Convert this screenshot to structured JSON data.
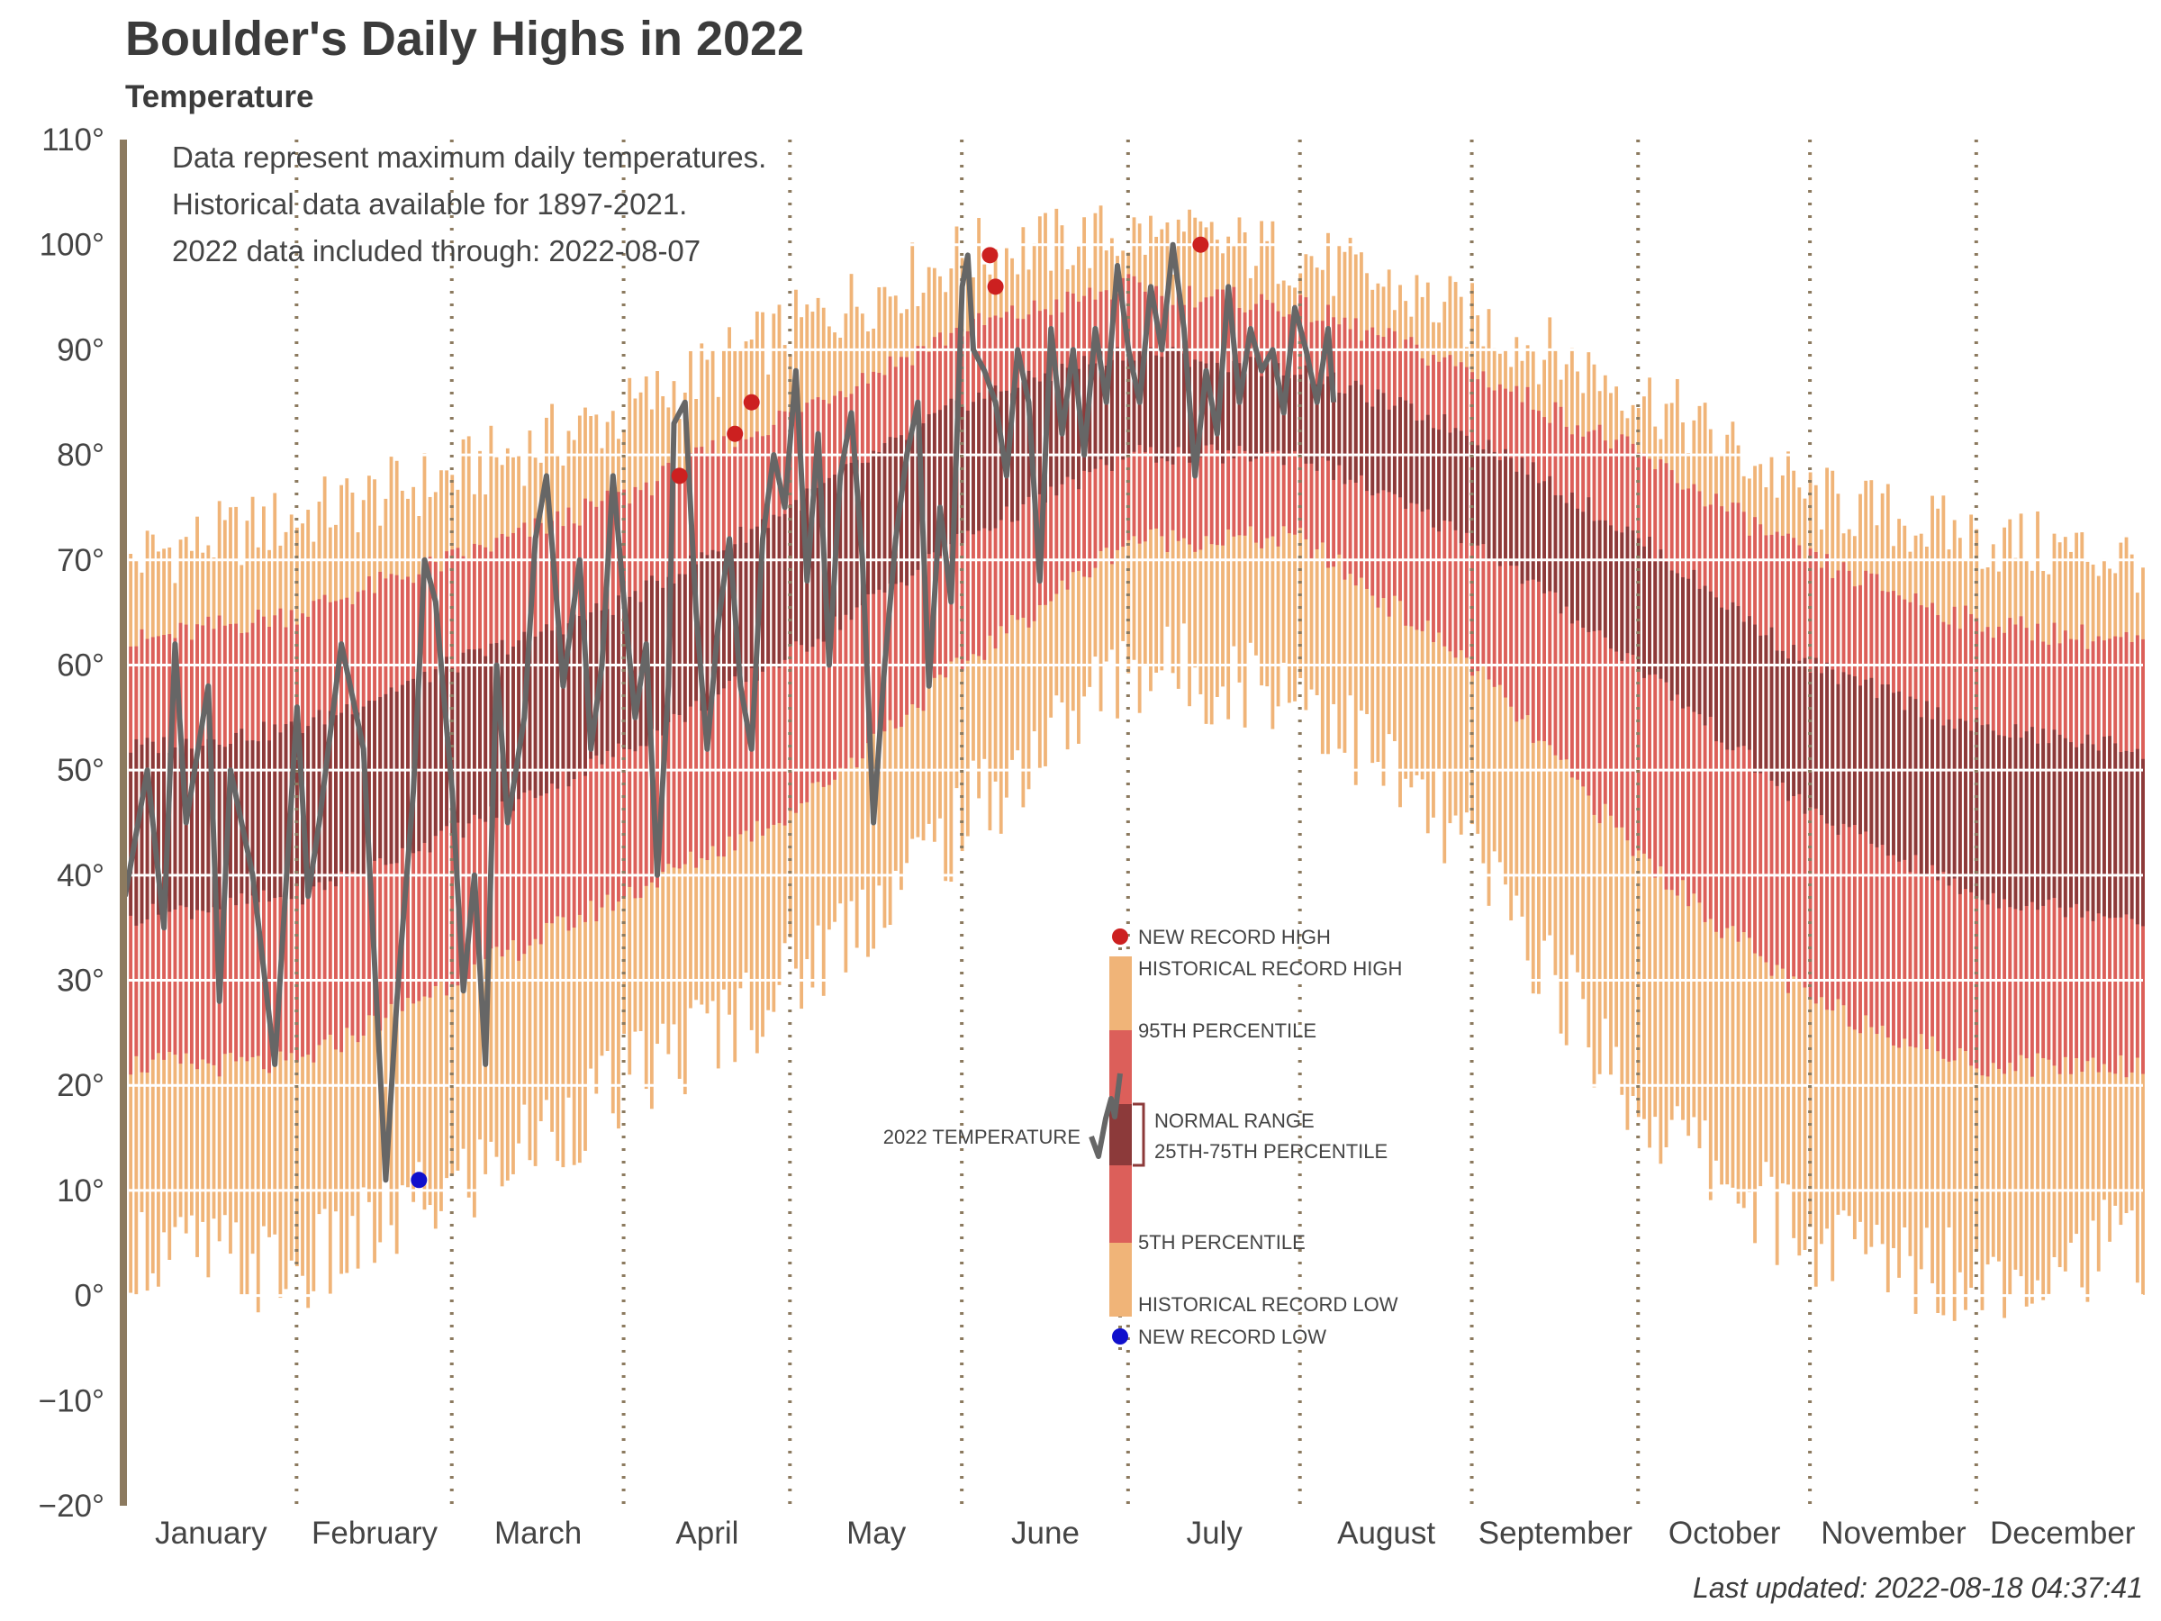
{
  "chart": {
    "title": "Boulder's Daily Highs in 2022",
    "subtitle": "Temperature",
    "last_updated": "Last updated: 2022-08-18 04:37:41",
    "notes": [
      "Data represent maximum daily temperatures.",
      "Historical data available for 1897-2021.",
      "2022 data included through: 2022-08-07"
    ],
    "legend": {
      "new_record_high": "NEW RECORD HIGH",
      "historical_record_high": "HISTORICAL RECORD HIGH",
      "p95": "95TH PERCENTILE",
      "temp_2022": "2022 TEMPERATURE",
      "normal_range_1": "NORMAL RANGE",
      "normal_range_2": "25TH-75TH PERCENTILE",
      "p5": "5TH PERCENTILE",
      "historical_record_low": "HISTORICAL RECORD LOW",
      "new_record_low": "NEW RECORD LOW"
    },
    "colors": {
      "record_band": "#f0b478",
      "percentile_band": "#dc5f5a",
      "normal_band": "#8c3a3a",
      "line_2022": "#666666",
      "record_high_dot": "#cc2020",
      "record_low_dot": "#1010cc",
      "axis": "#8c7a5f",
      "month_divider": "#8c7a5f"
    }
  },
  "chart_data": {
    "type": "area",
    "xlabel": "",
    "ylabel": "",
    "ylim": [
      -20,
      110
    ],
    "yticks": [
      -20,
      -10,
      0,
      10,
      20,
      30,
      40,
      50,
      60,
      70,
      80,
      90,
      100,
      110
    ],
    "ytick_labels": [
      "−20°",
      "−10°",
      "0°",
      "10°",
      "20°",
      "30°",
      "40°",
      "50°",
      "60°",
      "70°",
      "80°",
      "90°",
      "100°",
      "110°"
    ],
    "x_unit": "day of year",
    "xlim": [
      1,
      365
    ],
    "grid": true,
    "months": [
      "January",
      "February",
      "March",
      "April",
      "May",
      "June",
      "July",
      "August",
      "September",
      "October",
      "November",
      "December"
    ],
    "month_start_days": [
      1,
      32,
      60,
      91,
      121,
      152,
      182,
      213,
      244,
      274,
      305,
      335
    ],
    "historical_profile": {
      "day": [
        1,
        32,
        60,
        91,
        121,
        152,
        182,
        213,
        244,
        274,
        305,
        335,
        365
      ],
      "record_high": [
        70,
        74,
        78,
        84,
        92,
        99,
        101,
        99,
        93,
        86,
        76,
        72,
        70
      ],
      "p95": [
        62,
        65,
        70,
        76,
        84,
        92,
        96,
        94,
        88,
        80,
        70,
        64,
        62
      ],
      "p75": [
        52,
        54,
        60,
        66,
        75,
        85,
        90,
        88,
        82,
        72,
        60,
        54,
        52
      ],
      "p25": [
        36,
        38,
        44,
        52,
        61,
        72,
        80,
        80,
        72,
        60,
        46,
        38,
        36
      ],
      "p5": [
        22,
        22,
        30,
        38,
        46,
        60,
        72,
        72,
        60,
        42,
        28,
        22,
        22
      ],
      "record_low": [
        5,
        2,
        10,
        20,
        30,
        45,
        60,
        58,
        42,
        18,
        5,
        2,
        5
      ]
    },
    "series_2022": {
      "day": [
        1,
        5,
        8,
        10,
        12,
        16,
        18,
        20,
        24,
        28,
        32,
        34,
        36,
        40,
        44,
        48,
        50,
        53,
        55,
        57,
        60,
        62,
        64,
        66,
        68,
        70,
        73,
        75,
        77,
        79,
        80,
        83,
        85,
        87,
        89,
        91,
        93,
        95,
        97,
        99,
        100,
        102,
        104,
        106,
        108,
        110,
        112,
        114,
        116,
        118,
        120,
        122,
        124,
        126,
        128,
        130,
        132,
        134,
        136,
        138,
        140,
        142,
        144,
        146,
        148,
        150,
        152,
        153,
        154,
        156,
        158,
        160,
        162,
        164,
        166,
        168,
        170,
        172,
        174,
        176,
        178,
        180,
        182,
        184,
        186,
        188,
        190,
        192,
        194,
        196,
        198,
        200,
        202,
        204,
        206,
        208,
        210,
        212,
        214,
        216,
        218,
        219
      ],
      "value": [
        38,
        50,
        35,
        62,
        45,
        58,
        28,
        50,
        40,
        22,
        56,
        38,
        45,
        62,
        52,
        11,
        28,
        48,
        70,
        66,
        48,
        29,
        40,
        22,
        60,
        45,
        55,
        72,
        78,
        65,
        58,
        70,
        52,
        60,
        78,
        66,
        55,
        62,
        40,
        58,
        83,
        85,
        65,
        52,
        64,
        72,
        58,
        52,
        72,
        80,
        75,
        88,
        68,
        82,
        60,
        78,
        84,
        70,
        45,
        60,
        72,
        80,
        85,
        58,
        75,
        66,
        96,
        99,
        90,
        88,
        85,
        78,
        90,
        85,
        68,
        92,
        82,
        90,
        80,
        92,
        85,
        98,
        90,
        85,
        96,
        90,
        100,
        92,
        78,
        88,
        82,
        96,
        85,
        92,
        88,
        90,
        84,
        94,
        90,
        85,
        92,
        85
      ]
    },
    "new_record_highs": [
      {
        "day": 101,
        "value": 78
      },
      {
        "day": 111,
        "value": 82
      },
      {
        "day": 114,
        "value": 85
      },
      {
        "day": 157,
        "value": 99
      },
      {
        "day": 158,
        "value": 96
      },
      {
        "day": 195,
        "value": 100
      }
    ],
    "new_record_lows": [
      {
        "day": 54,
        "value": 11
      }
    ]
  }
}
